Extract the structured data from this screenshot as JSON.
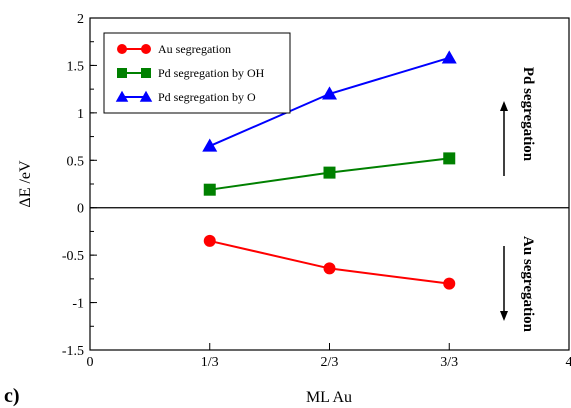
{
  "chart_data": {
    "type": "line",
    "panel_label": "c)",
    "xlabel": "ML Au",
    "ylabel": "ΔE /eV",
    "xlim": [
      0,
      4
    ],
    "ylim": [
      -1.5,
      2
    ],
    "x_ticks": [
      {
        "value": 0,
        "label": "0"
      },
      {
        "value": 1,
        "label": "1/3"
      },
      {
        "value": 2,
        "label": "2/3"
      },
      {
        "value": 3,
        "label": "3/3"
      },
      {
        "value": 4,
        "label": "4"
      }
    ],
    "y_ticks": [
      {
        "value": -1.5,
        "label": "-1.5"
      },
      {
        "value": -1,
        "label": "-1"
      },
      {
        "value": -0.5,
        "label": "-0.5"
      },
      {
        "value": 0,
        "label": "0"
      },
      {
        "value": 0.5,
        "label": "0.5"
      },
      {
        "value": 1,
        "label": "1"
      },
      {
        "value": 1.5,
        "label": "1.5"
      },
      {
        "value": 2,
        "label": "2"
      }
    ],
    "x": [
      1,
      2,
      3
    ],
    "series": [
      {
        "name": "Au segregation",
        "values": [
          -0.35,
          -0.64,
          -0.8
        ],
        "color": "#ff0000",
        "marker": "circle"
      },
      {
        "name": "Pd segregation by OH",
        "values": [
          0.19,
          0.37,
          0.52
        ],
        "color": "#008000",
        "marker": "square"
      },
      {
        "name": "Pd segregation by O",
        "values": [
          0.65,
          1.2,
          1.58
        ],
        "color": "#0000ff",
        "marker": "triangle"
      }
    ],
    "reference_line": 0,
    "annotations": [
      {
        "text": "Pd segregation",
        "arrow": "up"
      },
      {
        "text": "Au segregation",
        "arrow": "down"
      }
    ],
    "legend_position": "top-left",
    "grid": false
  }
}
